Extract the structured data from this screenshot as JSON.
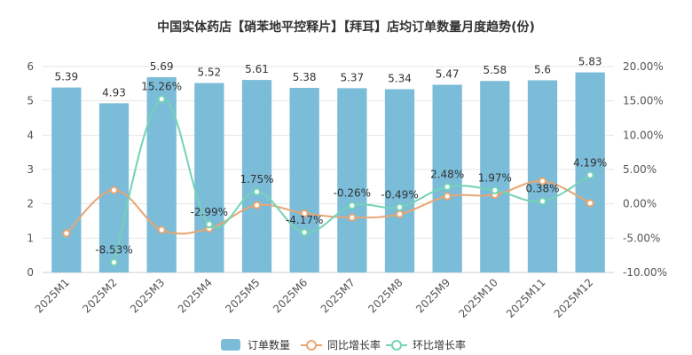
{
  "chart_data": {
    "type": "bar",
    "title": "中国实体药店【硝苯地平控释片】【拜耳】店均订单数量月度趋势(份)",
    "categories": [
      "2025M1",
      "2025M2",
      "2025M3",
      "2025M4",
      "2025M5",
      "2025M6",
      "2025M7",
      "2025M8",
      "2025M9",
      "2025M10",
      "2025M11",
      "2025M12"
    ],
    "left_axis": {
      "ylim": [
        0,
        6
      ],
      "ticks": [
        "0",
        "1",
        "2",
        "3",
        "4",
        "5",
        "6"
      ]
    },
    "right_axis": {
      "ylim": [
        -10,
        20
      ],
      "ticks": [
        "-10.00%",
        "-5.00%",
        "0.00%",
        "5.00%",
        "10.00%",
        "15.00%",
        "20.00%"
      ]
    },
    "series": [
      {
        "name": "订单数量",
        "kind": "bar",
        "axis": "left",
        "color": "#7BBCD9",
        "values": [
          5.39,
          4.93,
          5.69,
          5.52,
          5.61,
          5.38,
          5.37,
          5.34,
          5.47,
          5.58,
          5.6,
          5.83
        ],
        "labels": [
          "5.39",
          "4.93",
          "5.69",
          "5.52",
          "5.61",
          "5.38",
          "5.37",
          "5.34",
          "5.47",
          "5.58",
          "5.6",
          "5.83"
        ]
      },
      {
        "name": "同比增长率",
        "kind": "line",
        "axis": "right",
        "color": "#E8A673",
        "values": [
          -4.3,
          2.0,
          -3.8,
          -3.6,
          -0.2,
          -1.4,
          -2.0,
          -1.5,
          1.1,
          1.3,
          3.3,
          0.1
        ]
      },
      {
        "name": "环比增长率",
        "kind": "line",
        "axis": "right",
        "color": "#74D3B5",
        "values": [
          null,
          -8.53,
          15.26,
          -2.99,
          1.75,
          -4.17,
          -0.26,
          -0.49,
          2.48,
          1.97,
          0.38,
          4.19
        ],
        "labels": [
          null,
          "-8.53%",
          "15.26%",
          "-2.99%",
          "1.75%",
          "-4.17%",
          "-0.26%",
          "-0.49%",
          "2.48%",
          "1.97%",
          "0.38%",
          "4.19%"
        ]
      }
    ],
    "legend_position": "bottom-center"
  }
}
